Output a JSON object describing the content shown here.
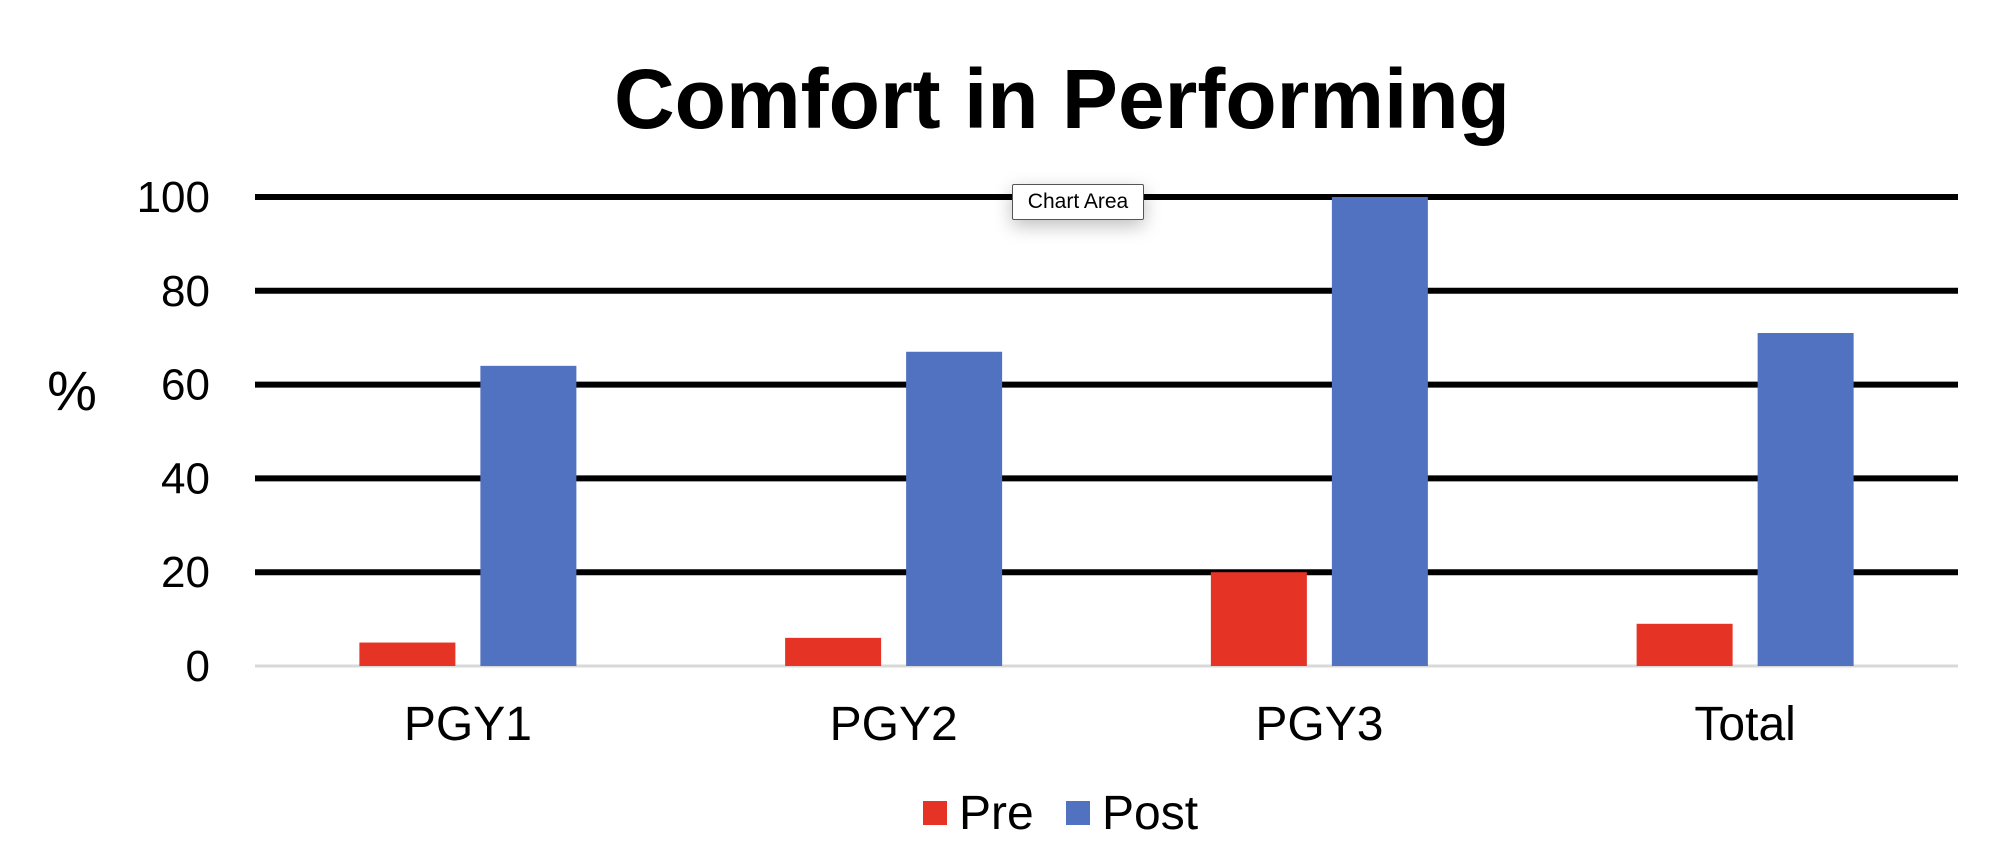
{
  "chart_data": {
    "type": "bar",
    "title": "Comfort in Performing",
    "xlabel": "",
    "ylabel": "%",
    "categories": [
      "PGY1",
      "PGY2",
      "PGY3",
      "Total"
    ],
    "series": [
      {
        "name": "Pre",
        "color": "#e53425",
        "values": [
          5,
          6,
          20,
          9
        ]
      },
      {
        "name": "Post",
        "color": "#5072c0",
        "values": [
          64,
          67,
          100,
          71
        ]
      }
    ],
    "ylim": [
      0,
      100
    ],
    "yticks": [
      0,
      20,
      40,
      60,
      80,
      100
    ],
    "grid": true,
    "legend_position": "bottom"
  },
  "tooltip": {
    "text": "Chart Area"
  }
}
